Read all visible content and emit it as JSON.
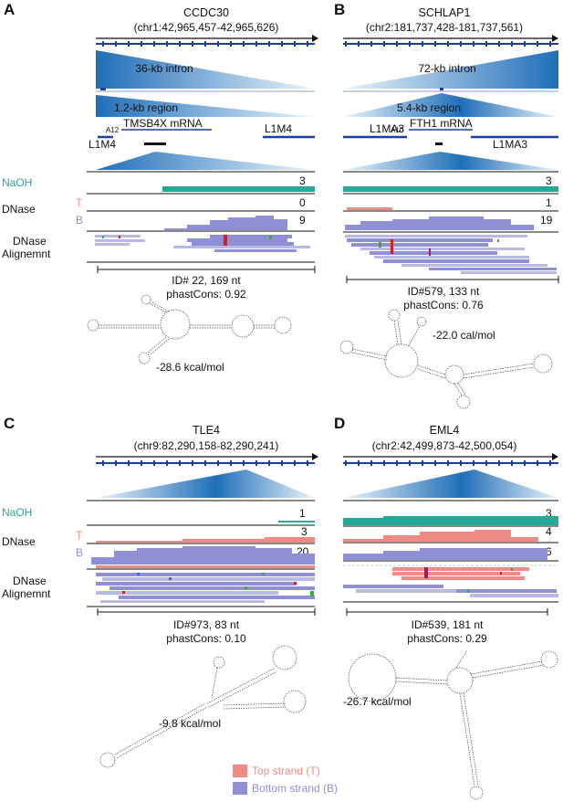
{
  "colors": {
    "naoh": "#26a899",
    "top_strand": "#f08a84",
    "bottom_strand": "#8f8fd6",
    "gene_track": "#1c3fa0",
    "triangle": "#2a8fd0"
  },
  "panels": [
    {
      "letter": "A",
      "gene": "CCDC30",
      "coord": "(chr1:42,965,457-42,965,626)",
      "zoom1": "36-kb intron",
      "zoom2": "1.2-kb region",
      "features": {
        "mrna_a": "A12",
        "mrna": "TMSB4X mRNA",
        "left": "L1M4",
        "right": "L1M4"
      },
      "naoh_label": "NaOH",
      "naoh_count": "3",
      "dnase_label": "DNase",
      "strand_t": "T",
      "strand_b": "B",
      "dnase_t_count": "0",
      "dnase_b_count": "9",
      "align_label_1": "DNase",
      "align_label_2": "Alignemnt",
      "id_line": "ID# 22, 169 nt",
      "phast_line": "phastCons: 0.92",
      "energy": "-28.6 kcal/mol"
    },
    {
      "letter": "B",
      "gene": "SCHLAP1",
      "coord": "(chr2:181,737,428-181,737,561)",
      "zoom1": "72-kb intron",
      "zoom2": "5.4-kb region",
      "features": {
        "mrna_a": "A10",
        "mrna": "FTH1 mRNA",
        "left": "L1MA3",
        "right": "L1MA3"
      },
      "naoh_count": "3",
      "dnase_t_count": "1",
      "dnase_b_count": "19",
      "id_line": "ID#579, 133 nt",
      "phast_line": "phastCons: 0.76",
      "energy": "-22.0 cal/mol"
    },
    {
      "letter": "C",
      "gene": "TLE4",
      "coord": "(chr9:82,290,158-82,290,241)",
      "naoh_label": "NaOH",
      "naoh_count": "1",
      "dnase_label": "DNase",
      "strand_t": "T",
      "strand_b": "B",
      "dnase_t_count": "3",
      "dnase_b_count": "20",
      "align_label_1": "DNase",
      "align_label_2": "Alignemnt",
      "id_line": "ID#973, 83 nt",
      "phast_line": "phastCons: 0.10",
      "energy": "-9.8 kcal/mol"
    },
    {
      "letter": "D",
      "gene": "EML4",
      "coord": "(chr2:42,499,873-42,500,054)",
      "naoh_count": "3",
      "dnase_t_count": "4",
      "dnase_b_count": "6",
      "id_line": "ID#539, 181 nt",
      "phast_line": "phastCons: 0.29",
      "energy": "-26.7 kcal/mol"
    }
  ],
  "legend": {
    "top": "Top strand (T)",
    "bottom": "Bottom strand (B)"
  }
}
